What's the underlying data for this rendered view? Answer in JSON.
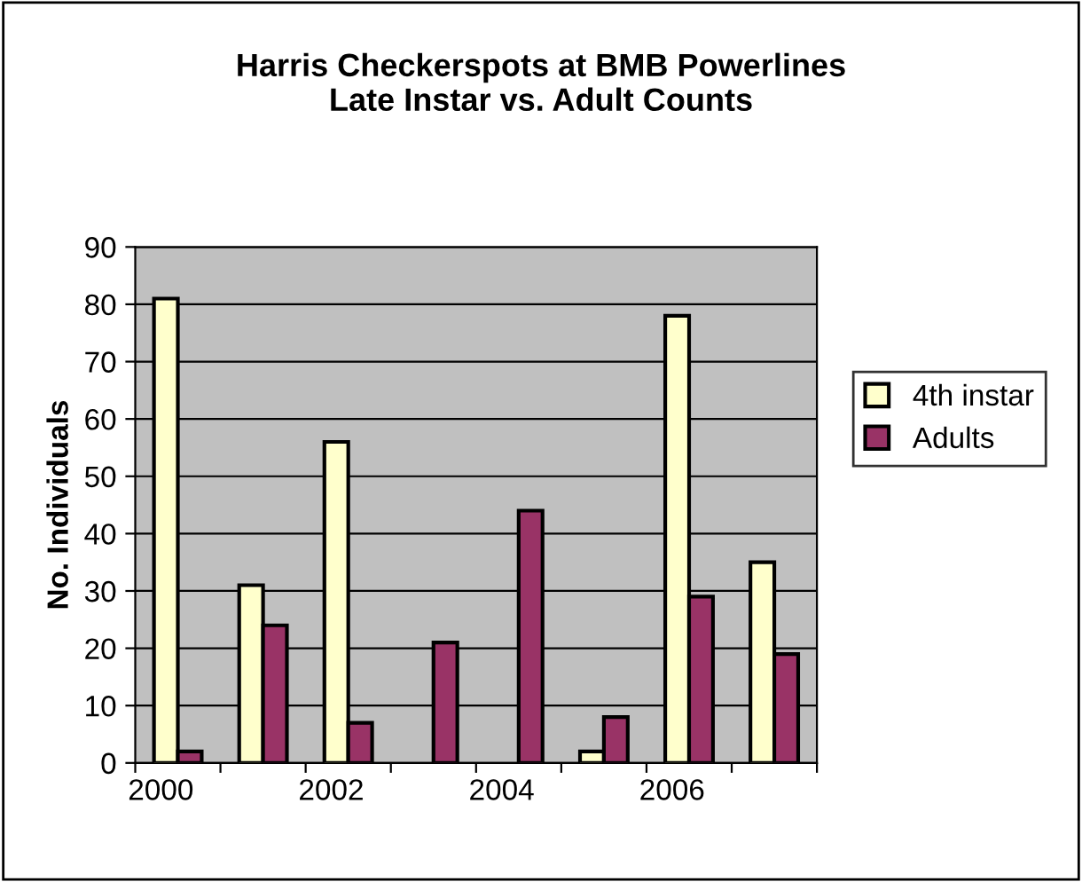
{
  "chart_data": {
    "type": "bar",
    "title": "Harris Checkerspots at BMB Powerlines\nLate Instar vs. Adult Counts",
    "ylabel": "No. Individuals",
    "categories": [
      "2000",
      null,
      "2002",
      null,
      "2004",
      null,
      "2006",
      null
    ],
    "series": [
      {
        "name": "4th instar",
        "color": "#ffffcc",
        "values": [
          81,
          31,
          56,
          null,
          null,
          2,
          78,
          35
        ]
      },
      {
        "name": "Adults",
        "color": "#993366",
        "values": [
          2,
          24,
          7,
          21,
          44,
          8,
          29,
          19
        ]
      }
    ],
    "ylim": [
      0,
      90
    ],
    "yticks": [
      0,
      10,
      20,
      30,
      40,
      50,
      60,
      70,
      80,
      90
    ],
    "grid": "y",
    "legend": "right"
  }
}
